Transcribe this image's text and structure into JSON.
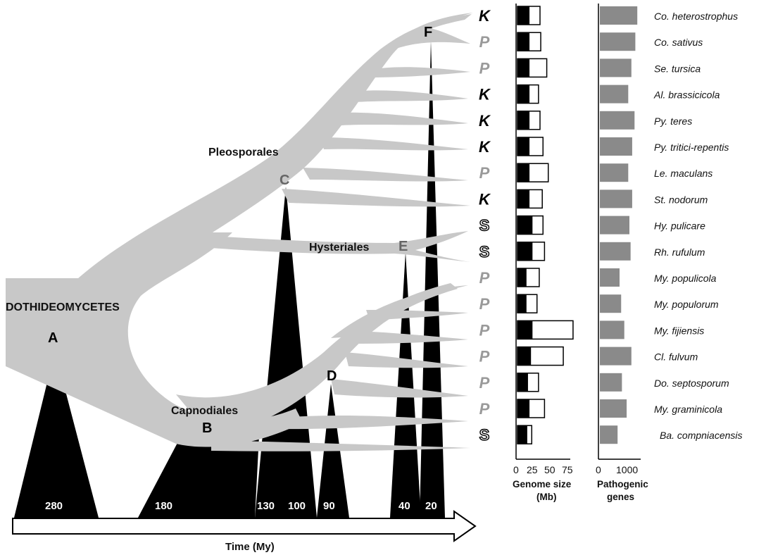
{
  "orders": {
    "pleosporales": "Pleosporales",
    "hysteriales": "Hysteriales",
    "capnodiales": "Capnodiales",
    "class_label": "DOTHIDEOMYCETES"
  },
  "nodes": [
    "A",
    "B",
    "C",
    "D",
    "E",
    "F"
  ],
  "ages": [
    "280",
    "180",
    "130",
    "100",
    "90",
    "40",
    "20"
  ],
  "time_axis_title": "Time (My)",
  "genome_panel": {
    "title_line1": "Genome size",
    "title_line2": "(Mb)",
    "ticks": [
      "0",
      "25",
      "50",
      "75"
    ],
    "xlim": [
      0,
      75
    ]
  },
  "pathogenic_panel": {
    "title_line1": "Pathogenic",
    "title_line2": "genes",
    "ticks": [
      "0",
      "1000"
    ],
    "xlim": [
      0,
      1000
    ]
  },
  "colors": {
    "tree": "#c8c8c8",
    "divergence": "#000000",
    "pathogenic_bar": "#8a8a8a",
    "lifestyle_gray": "#9a9a9a",
    "lifestyle_black": "#000000"
  },
  "chart_data": {
    "type": "bar",
    "species": [
      {
        "name": "Co. heterostrophus",
        "lifestyle": "K",
        "genome_black": 16,
        "genome_total": 30,
        "pathogenic": 950
      },
      {
        "name": "Co. sativus",
        "lifestyle": "P",
        "genome_black": 16,
        "genome_total": 31,
        "pathogenic": 900
      },
      {
        "name": "Se. tursica",
        "lifestyle": "P",
        "genome_black": 16,
        "genome_total": 39,
        "pathogenic": 800
      },
      {
        "name": "Al. brassicicola",
        "lifestyle": "K",
        "genome_black": 16,
        "genome_total": 28,
        "pathogenic": 720
      },
      {
        "name": "Py. teres",
        "lifestyle": "K",
        "genome_black": 16,
        "genome_total": 30,
        "pathogenic": 880
      },
      {
        "name": "Py. tritici-repentis",
        "lifestyle": "K",
        "genome_black": 16,
        "genome_total": 34,
        "pathogenic": 820
      },
      {
        "name": "Le. maculans",
        "lifestyle": "P",
        "genome_black": 16,
        "genome_total": 41,
        "pathogenic": 720
      },
      {
        "name": "St. nodorum",
        "lifestyle": "K",
        "genome_black": 16,
        "genome_total": 33,
        "pathogenic": 820
      },
      {
        "name": "Hy. pulicare",
        "lifestyle": "S",
        "genome_black": 20,
        "genome_total": 34,
        "pathogenic": 750
      },
      {
        "name": "Rh. rufulum",
        "lifestyle": "S",
        "genome_black": 20,
        "genome_total": 36,
        "pathogenic": 780
      },
      {
        "name": "My. populicola",
        "lifestyle": "P",
        "genome_black": 12,
        "genome_total": 29,
        "pathogenic": 500
      },
      {
        "name": "My. populorum",
        "lifestyle": "P",
        "genome_black": 12,
        "genome_total": 26,
        "pathogenic": 540
      },
      {
        "name": "My. fijiensis",
        "lifestyle": "P",
        "genome_black": 20,
        "genome_total": 74,
        "pathogenic": 620
      },
      {
        "name": "Cl. fulvum",
        "lifestyle": "P",
        "genome_black": 18,
        "genome_total": 61,
        "pathogenic": 800
      },
      {
        "name": "Do. septosporum",
        "lifestyle": "P",
        "genome_black": 14,
        "genome_total": 28,
        "pathogenic": 560
      },
      {
        "name": "My. graminicola",
        "lifestyle": "P",
        "genome_black": 16,
        "genome_total": 36,
        "pathogenic": 680
      },
      {
        "name": "Ba. compniacensis",
        "lifestyle": "S",
        "genome_black": 13,
        "genome_total": 19,
        "pathogenic": 450
      }
    ]
  }
}
